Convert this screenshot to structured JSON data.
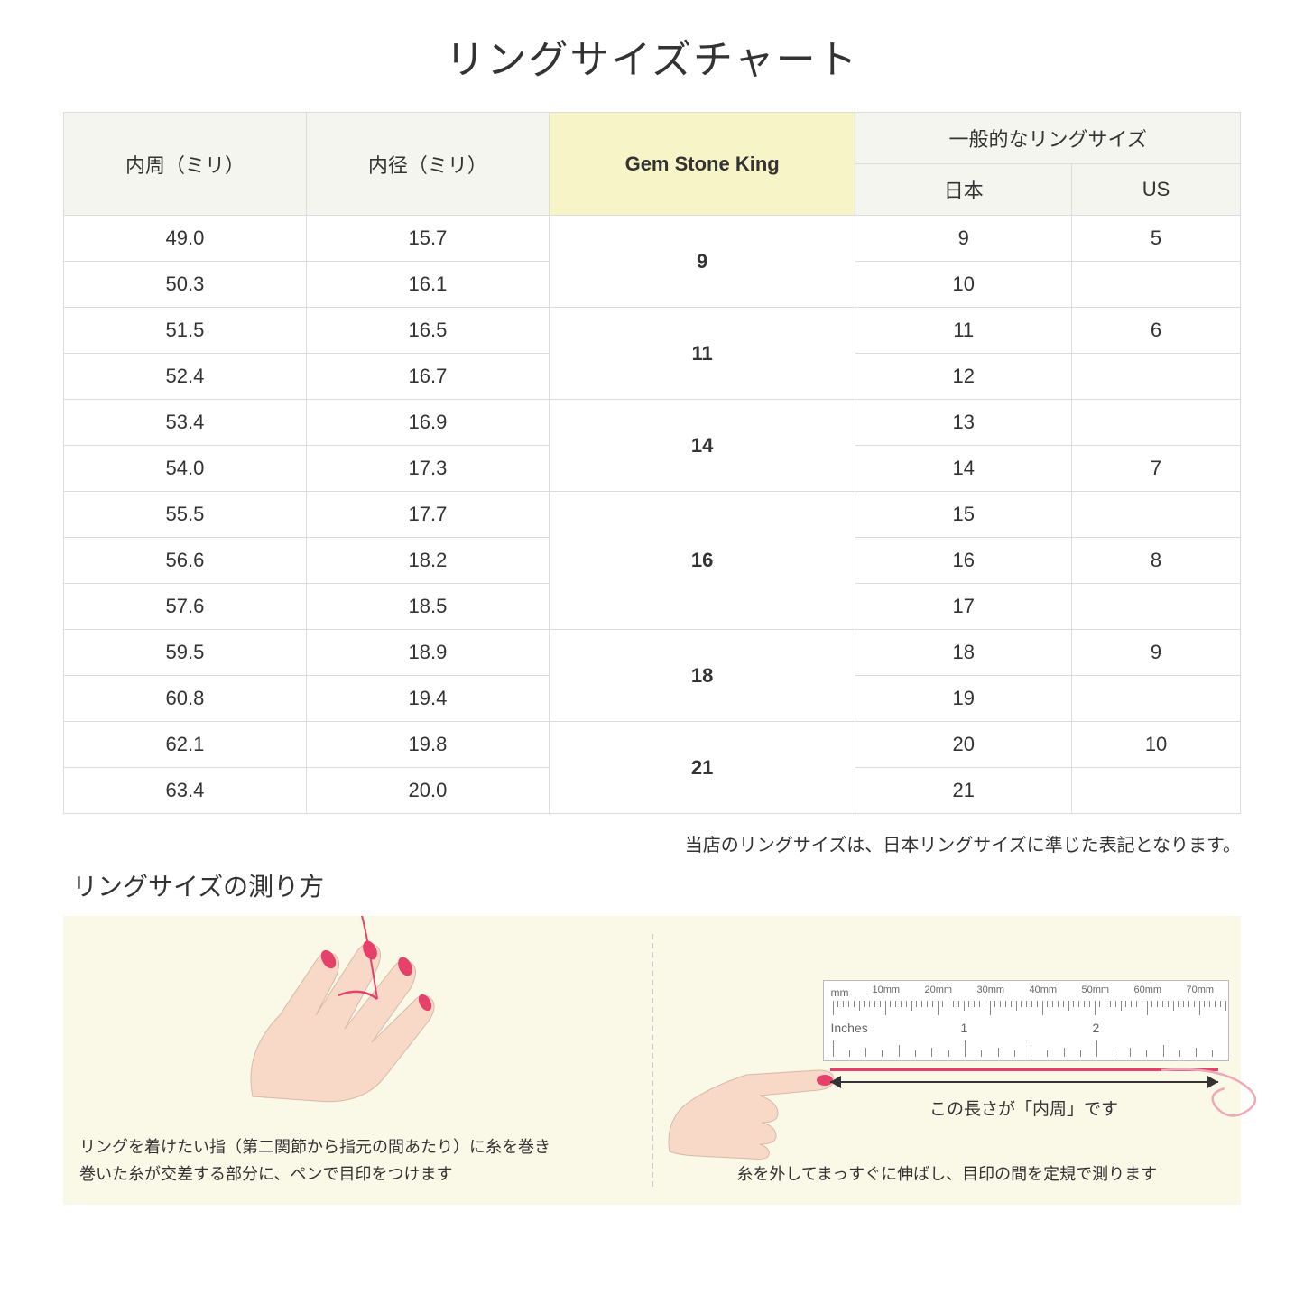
{
  "title": "リングサイズチャート",
  "table": {
    "headers": {
      "circumference": "内周（ミリ）",
      "diameter": "内径（ミリ）",
      "gsk": "Gem Stone King",
      "common": "一般的なリングサイズ",
      "japan": "日本",
      "us": "US"
    },
    "header_bg": "#f5f5ef",
    "highlight_bg": "#f7f5c8",
    "border_color": "#dcdcdc",
    "groups": [
      {
        "gsk": "9",
        "rows": [
          {
            "c": "49.0",
            "d": "15.7",
            "jp": "9",
            "us": "5"
          },
          {
            "c": "50.3",
            "d": "16.1",
            "jp": "10",
            "us": ""
          }
        ]
      },
      {
        "gsk": "11",
        "rows": [
          {
            "c": "51.5",
            "d": "16.5",
            "jp": "11",
            "us": "6"
          },
          {
            "c": "52.4",
            "d": "16.7",
            "jp": "12",
            "us": ""
          }
        ]
      },
      {
        "gsk": "14",
        "rows": [
          {
            "c": "53.4",
            "d": "16.9",
            "jp": "13",
            "us": ""
          },
          {
            "c": "54.0",
            "d": "17.3",
            "jp": "14",
            "us": "7"
          }
        ]
      },
      {
        "gsk": "16",
        "rows": [
          {
            "c": "55.5",
            "d": "17.7",
            "jp": "15",
            "us": ""
          },
          {
            "c": "56.6",
            "d": "18.2",
            "jp": "16",
            "us": "8"
          },
          {
            "c": "57.6",
            "d": "18.5",
            "jp": "17",
            "us": ""
          }
        ]
      },
      {
        "gsk": "18",
        "rows": [
          {
            "c": "59.5",
            "d": "18.9",
            "jp": "18",
            "us": "9"
          },
          {
            "c": "60.8",
            "d": "19.4",
            "jp": "19",
            "us": ""
          }
        ]
      },
      {
        "gsk": "21",
        "rows": [
          {
            "c": "62.1",
            "d": "19.8",
            "jp": "20",
            "us": "10"
          },
          {
            "c": "63.4",
            "d": "20.0",
            "jp": "21",
            "us": ""
          }
        ]
      }
    ]
  },
  "note": "当店のリングサイズは、日本リングサイズに準じた表記となります。",
  "measure": {
    "title": "リングサイズの測り方",
    "panel_bg": "#faf8e6",
    "hand_skin": "#f8d9c8",
    "nail_color": "#e6416a",
    "thread_color": "#e6416a",
    "left_caption": "リングを着けたい指（第二関節から指元の間あたり）に糸を巻き\n巻いた糸が交差する部分に、ペンで目印をつけます",
    "right_caption": "糸を外してまっすぐに伸ばし、目印の間を定規で測ります",
    "ruler": {
      "unit_mm": "mm",
      "unit_in": "Inches",
      "mm_labels": [
        "10mm",
        "20mm",
        "30mm",
        "40mm",
        "50mm",
        "60mm",
        "70mm"
      ],
      "in_labels": [
        "1",
        "2"
      ]
    },
    "arrow_label": "この長さが「内周」です"
  }
}
